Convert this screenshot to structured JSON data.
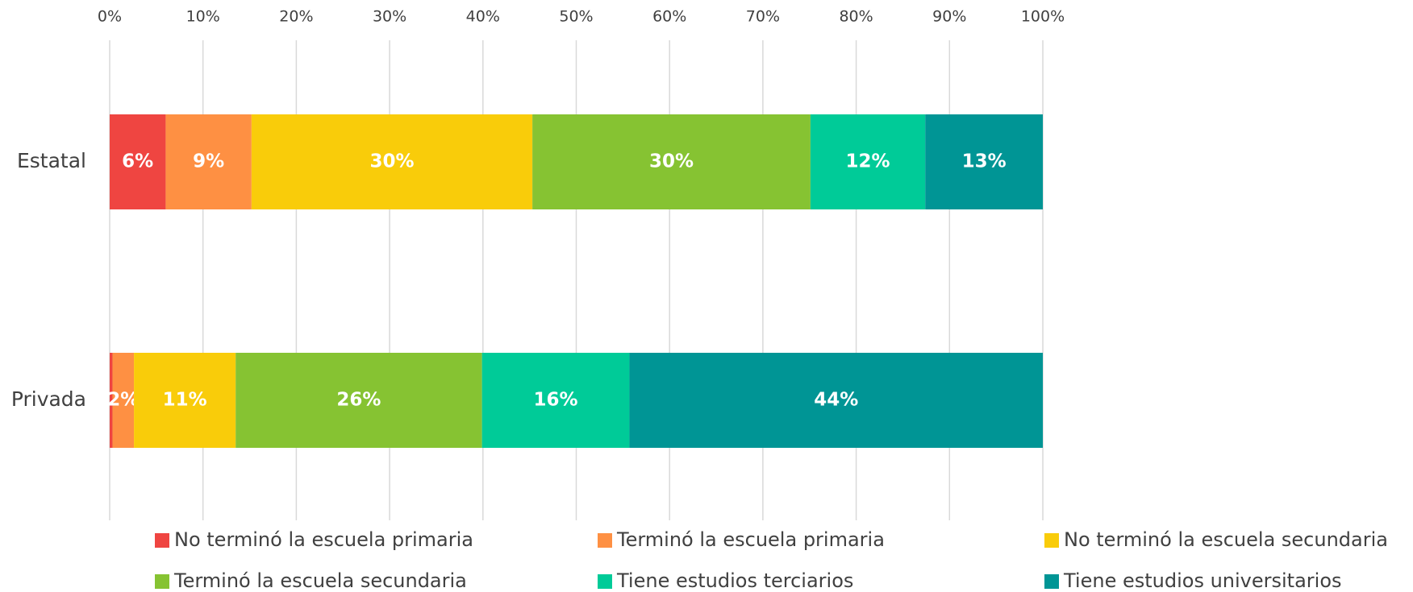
{
  "chart_data": {
    "type": "stacked_barh",
    "categories": [
      "Estatal",
      "Privada"
    ],
    "series": [
      {
        "name": "No terminó la escuela primaria",
        "color": "#ef4541",
        "values": [
          6,
          0.3
        ],
        "value_labels": [
          "6%",
          null
        ]
      },
      {
        "name": "Terminó la escuela primaria",
        "color": "#fe9043",
        "values": [
          9.2,
          2.3
        ],
        "value_labels": [
          "9%",
          "2%"
        ]
      },
      {
        "name": "No terminó la escuela secundaria",
        "color": "#f9cc0a",
        "values": [
          30.1,
          10.9
        ],
        "value_labels": [
          "30%",
          "11%"
        ]
      },
      {
        "name": "Terminó la escuela secundaria",
        "color": "#86c332",
        "values": [
          29.8,
          26.4
        ],
        "value_labels": [
          "30%",
          "26%"
        ]
      },
      {
        "name": "Tiene estudios terciarios",
        "color": "#00cb98",
        "values": [
          12.3,
          15.8
        ],
        "value_labels": [
          "12%",
          "16%"
        ]
      },
      {
        "name": "Tiene estudios universitarios",
        "color": "#009595",
        "values": [
          12.6,
          44.3
        ],
        "value_labels": [
          "13%",
          "44%"
        ]
      }
    ],
    "xlim": [
      0,
      100
    ],
    "xticks": [
      {
        "value": 0,
        "label": "0%"
      },
      {
        "value": 10,
        "label": "10%"
      },
      {
        "value": 20,
        "label": "20%"
      },
      {
        "value": 30,
        "label": "30%"
      },
      {
        "value": 40,
        "label": "40%"
      },
      {
        "value": 50,
        "label": "50%"
      },
      {
        "value": 60,
        "label": "60%"
      },
      {
        "value": 70,
        "label": "70%"
      },
      {
        "value": 80,
        "label": "80%"
      },
      {
        "value": 90,
        "label": "90%"
      },
      {
        "value": 100,
        "label": "100%"
      }
    ],
    "grid": true,
    "legend": "bottom"
  }
}
